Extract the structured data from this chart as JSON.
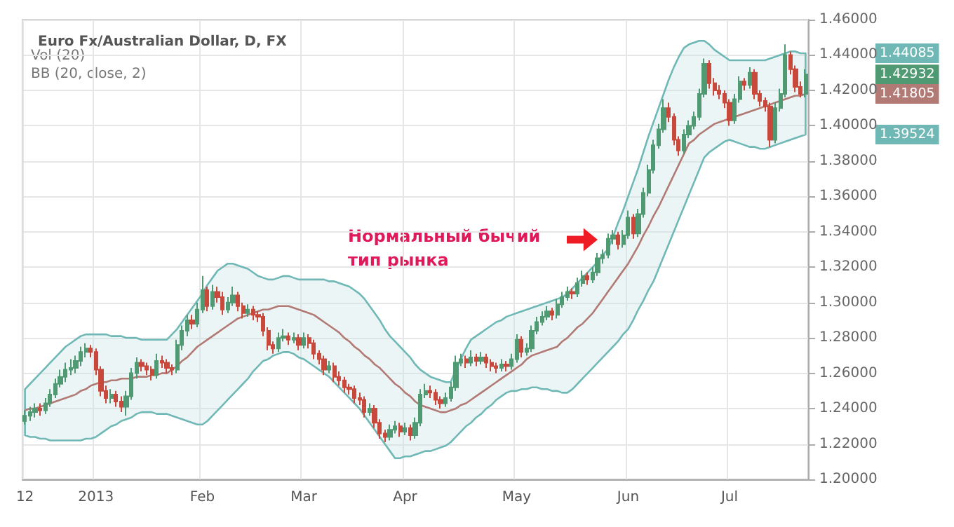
{
  "chart_data": {
    "type": "candlestick",
    "title": "Euro Fx/Australian Dollar, D, FX",
    "annotations": [
      "Vol (20)",
      "BB (20, close, 2)",
      "Нормальный бычий\nтип рынка",
      "1.44085",
      "1.42932",
      "1.41805",
      "1.39524"
    ],
    "categories": [
      "12",
      null,
      null,
      null,
      null,
      null,
      null,
      null,
      null,
      null,
      null,
      null,
      null,
      null,
      "2013",
      null,
      null,
      null,
      null,
      null,
      null,
      null,
      null,
      null,
      null,
      null,
      null,
      null,
      null,
      null,
      null,
      null,
      null,
      null,
      null,
      "Feb",
      null,
      null,
      null,
      null,
      null,
      null,
      null,
      null,
      null,
      null,
      null,
      null,
      null,
      null,
      null,
      null,
      null,
      null,
      null,
      "Mar",
      null,
      null,
      null,
      null,
      null,
      null,
      null,
      null,
      null,
      null,
      null,
      null,
      null,
      null,
      null,
      null,
      null,
      null,
      null,
      "Apr",
      null,
      null,
      null,
      null,
      null,
      null,
      null,
      null,
      null,
      null,
      null,
      null,
      null,
      null,
      null,
      null,
      null,
      null,
      null,
      null,
      null,
      "May",
      null,
      null,
      null,
      null,
      null,
      null,
      null,
      null,
      null,
      null,
      null,
      null,
      null,
      null,
      null,
      null,
      null,
      null,
      null,
      null,
      null,
      "Jun",
      null,
      null,
      null,
      null,
      null,
      null,
      null,
      null,
      null,
      null,
      null,
      null,
      null,
      null,
      null,
      null,
      null,
      null,
      null,
      "Jul",
      null,
      null,
      null,
      null,
      null,
      null,
      null,
      null,
      null,
      null,
      null,
      null,
      null,
      null,
      null
    ],
    "ohlc": [
      [
        1.233,
        1.239,
        1.231,
        1.236
      ],
      [
        1.236,
        1.241,
        1.233,
        1.238
      ],
      [
        1.238,
        1.243,
        1.235,
        1.24
      ],
      [
        1.24,
        1.243,
        1.236,
        1.239
      ],
      [
        1.239,
        1.246,
        1.237,
        1.243
      ],
      [
        1.243,
        1.251,
        1.241,
        1.248
      ],
      [
        1.248,
        1.257,
        1.246,
        1.254
      ],
      [
        1.254,
        1.262,
        1.252,
        1.258
      ],
      [
        1.258,
        1.266,
        1.255,
        1.262
      ],
      [
        1.262,
        1.268,
        1.259,
        1.263
      ],
      [
        1.263,
        1.27,
        1.26,
        1.267
      ],
      [
        1.267,
        1.275,
        1.264,
        1.272
      ],
      [
        1.272,
        1.277,
        1.269,
        1.274
      ],
      [
        1.274,
        1.276,
        1.269,
        1.272
      ],
      [
        1.272,
        1.274,
        1.259,
        1.262
      ],
      [
        1.262,
        1.264,
        1.247,
        1.25
      ],
      [
        1.25,
        1.253,
        1.243,
        1.246
      ],
      [
        1.246,
        1.251,
        1.243,
        1.248
      ],
      [
        1.248,
        1.25,
        1.241,
        1.244
      ],
      [
        1.244,
        1.247,
        1.238,
        1.241
      ],
      [
        1.241,
        1.25,
        1.236,
        1.247
      ],
      [
        1.247,
        1.263,
        1.245,
        1.26
      ],
      [
        1.26,
        1.269,
        1.257,
        1.266
      ],
      [
        1.266,
        1.268,
        1.261,
        1.264
      ],
      [
        1.264,
        1.266,
        1.259,
        1.262
      ],
      [
        1.262,
        1.264,
        1.256,
        1.259
      ],
      [
        1.259,
        1.271,
        1.257,
        1.267
      ],
      [
        1.267,
        1.27,
        1.263,
        1.266
      ],
      [
        1.266,
        1.268,
        1.26,
        1.263
      ],
      [
        1.263,
        1.265,
        1.259,
        1.262
      ],
      [
        1.262,
        1.279,
        1.26,
        1.276
      ],
      [
        1.276,
        1.287,
        1.273,
        1.284
      ],
      [
        1.284,
        1.293,
        1.281,
        1.29
      ],
      [
        1.29,
        1.293,
        1.285,
        1.288
      ],
      [
        1.288,
        1.3,
        1.286,
        1.296
      ],
      [
        1.296,
        1.315,
        1.294,
        1.307
      ],
      [
        1.307,
        1.309,
        1.295,
        1.298
      ],
      [
        1.298,
        1.31,
        1.296,
        1.306
      ],
      [
        1.306,
        1.309,
        1.3,
        1.303
      ],
      [
        1.303,
        1.306,
        1.293,
        1.296
      ],
      [
        1.296,
        1.303,
        1.294,
        1.3
      ],
      [
        1.3,
        1.309,
        1.298,
        1.304
      ],
      [
        1.304,
        1.306,
        1.295,
        1.298
      ],
      [
        1.298,
        1.3,
        1.291,
        1.294
      ],
      [
        1.294,
        1.299,
        1.292,
        1.296
      ],
      [
        1.296,
        1.298,
        1.29,
        1.293
      ],
      [
        1.293,
        1.295,
        1.289,
        1.292
      ],
      [
        1.292,
        1.294,
        1.281,
        1.284
      ],
      [
        1.284,
        1.286,
        1.273,
        1.276
      ],
      [
        1.276,
        1.278,
        1.271,
        1.274
      ],
      [
        1.274,
        1.283,
        1.272,
        1.28
      ],
      [
        1.28,
        1.285,
        1.278,
        1.281
      ],
      [
        1.281,
        1.283,
        1.276,
        1.279
      ],
      [
        1.279,
        1.283,
        1.277,
        1.28
      ],
      [
        1.28,
        1.282,
        1.273,
        1.276
      ],
      [
        1.276,
        1.283,
        1.274,
        1.28
      ],
      [
        1.28,
        1.282,
        1.274,
        1.277
      ],
      [
        1.277,
        1.279,
        1.268,
        1.271
      ],
      [
        1.271,
        1.273,
        1.265,
        1.268
      ],
      [
        1.268,
        1.27,
        1.259,
        1.262
      ],
      [
        1.262,
        1.267,
        1.26,
        1.264
      ],
      [
        1.264,
        1.266,
        1.255,
        1.258
      ],
      [
        1.258,
        1.261,
        1.253,
        1.256
      ],
      [
        1.256,
        1.258,
        1.249,
        1.252
      ],
      [
        1.252,
        1.254,
        1.248,
        1.251
      ],
      [
        1.251,
        1.253,
        1.243,
        1.246
      ],
      [
        1.246,
        1.249,
        1.242,
        1.245
      ],
      [
        1.245,
        1.247,
        1.235,
        1.238
      ],
      [
        1.238,
        1.243,
        1.236,
        1.24
      ],
      [
        1.24,
        1.242,
        1.229,
        1.232
      ],
      [
        1.232,
        1.234,
        1.223,
        1.226
      ],
      [
        1.226,
        1.228,
        1.221,
        1.224
      ],
      [
        1.224,
        1.231,
        1.222,
        1.228
      ],
      [
        1.228,
        1.233,
        1.226,
        1.23
      ],
      [
        1.23,
        1.232,
        1.224,
        1.227
      ],
      [
        1.227,
        1.232,
        1.225,
        1.229
      ],
      [
        1.229,
        1.231,
        1.222,
        1.225
      ],
      [
        1.225,
        1.235,
        1.223,
        1.232
      ],
      [
        1.232,
        1.251,
        1.23,
        1.248
      ],
      [
        1.248,
        1.254,
        1.246,
        1.25
      ],
      [
        1.25,
        1.253,
        1.246,
        1.249
      ],
      [
        1.249,
        1.251,
        1.242,
        1.245
      ],
      [
        1.245,
        1.247,
        1.24,
        1.243
      ],
      [
        1.243,
        1.249,
        1.241,
        1.246
      ],
      [
        1.246,
        1.255,
        1.244,
        1.252
      ],
      [
        1.252,
        1.27,
        1.25,
        1.266
      ],
      [
        1.266,
        1.271,
        1.264,
        1.268
      ],
      [
        1.268,
        1.27,
        1.263,
        1.266
      ],
      [
        1.266,
        1.273,
        1.264,
        1.269
      ],
      [
        1.269,
        1.271,
        1.264,
        1.267
      ],
      [
        1.267,
        1.272,
        1.265,
        1.269
      ],
      [
        1.269,
        1.271,
        1.263,
        1.266
      ],
      [
        1.266,
        1.268,
        1.261,
        1.264
      ],
      [
        1.264,
        1.266,
        1.26,
        1.263
      ],
      [
        1.263,
        1.268,
        1.261,
        1.265
      ],
      [
        1.265,
        1.267,
        1.261,
        1.264
      ],
      [
        1.264,
        1.271,
        1.262,
        1.268
      ],
      [
        1.268,
        1.282,
        1.266,
        1.279
      ],
      [
        1.279,
        1.281,
        1.269,
        1.272
      ],
      [
        1.272,
        1.277,
        1.27,
        1.274
      ],
      [
        1.274,
        1.287,
        1.272,
        1.284
      ],
      [
        1.284,
        1.292,
        1.282,
        1.289
      ],
      [
        1.289,
        1.295,
        1.287,
        1.292
      ],
      [
        1.292,
        1.298,
        1.29,
        1.295
      ],
      [
        1.295,
        1.297,
        1.29,
        1.293
      ],
      [
        1.293,
        1.302,
        1.291,
        1.299
      ],
      [
        1.299,
        1.306,
        1.297,
        1.303
      ],
      [
        1.303,
        1.309,
        1.301,
        1.306
      ],
      [
        1.306,
        1.308,
        1.302,
        1.305
      ],
      [
        1.305,
        1.314,
        1.303,
        1.311
      ],
      [
        1.311,
        1.318,
        1.309,
        1.315
      ],
      [
        1.315,
        1.317,
        1.31,
        1.313
      ],
      [
        1.313,
        1.32,
        1.311,
        1.317
      ],
      [
        1.317,
        1.328,
        1.315,
        1.325
      ],
      [
        1.325,
        1.33,
        1.322,
        1.327
      ],
      [
        1.327,
        1.339,
        1.325,
        1.336
      ],
      [
        1.336,
        1.341,
        1.333,
        1.338
      ],
      [
        1.338,
        1.34,
        1.33,
        1.333
      ],
      [
        1.333,
        1.341,
        1.331,
        1.338
      ],
      [
        1.338,
        1.352,
        1.336,
        1.348
      ],
      [
        1.348,
        1.35,
        1.336,
        1.339
      ],
      [
        1.339,
        1.353,
        1.337,
        1.35
      ],
      [
        1.35,
        1.365,
        1.348,
        1.362
      ],
      [
        1.362,
        1.378,
        1.36,
        1.375
      ],
      [
        1.375,
        1.392,
        1.373,
        1.389
      ],
      [
        1.389,
        1.401,
        1.387,
        1.398
      ],
      [
        1.398,
        1.415,
        1.396,
        1.41
      ],
      [
        1.41,
        1.413,
        1.402,
        1.405
      ],
      [
        1.405,
        1.407,
        1.389,
        1.392
      ],
      [
        1.392,
        1.394,
        1.383,
        1.386
      ],
      [
        1.386,
        1.398,
        1.384,
        1.395
      ],
      [
        1.395,
        1.403,
        1.393,
        1.4
      ],
      [
        1.4,
        1.408,
        1.398,
        1.405
      ],
      [
        1.405,
        1.421,
        1.403,
        1.418
      ],
      [
        1.418,
        1.438,
        1.416,
        1.435
      ],
      [
        1.435,
        1.437,
        1.421,
        1.424
      ],
      [
        1.424,
        1.427,
        1.417,
        1.42
      ],
      [
        1.42,
        1.423,
        1.415,
        1.418
      ],
      [
        1.418,
        1.42,
        1.41,
        1.413
      ],
      [
        1.413,
        1.415,
        1.4,
        1.403
      ],
      [
        1.403,
        1.418,
        1.401,
        1.415
      ],
      [
        1.415,
        1.428,
        1.413,
        1.425
      ],
      [
        1.425,
        1.427,
        1.42,
        1.423
      ],
      [
        1.423,
        1.433,
        1.421,
        1.43
      ],
      [
        1.43,
        1.432,
        1.415,
        1.418
      ],
      [
        1.418,
        1.42,
        1.411,
        1.414
      ],
      [
        1.414,
        1.416,
        1.408,
        1.411
      ],
      [
        1.411,
        1.413,
        1.388,
        1.392
      ],
      [
        1.392,
        1.413,
        1.39,
        1.41
      ],
      [
        1.41,
        1.421,
        1.408,
        1.418
      ],
      [
        1.418,
        1.446,
        1.416,
        1.44
      ],
      [
        1.44,
        1.442,
        1.429,
        1.432
      ],
      [
        1.432,
        1.434,
        1.419,
        1.422
      ],
      [
        1.422,
        1.425,
        1.416,
        1.418
      ],
      [
        1.418,
        1.432,
        1.416,
        1.429
      ]
    ],
    "colors": [
      "#4f9a72",
      "#4f9a72",
      "#4f9a72",
      "#c9483c",
      "#4f9a72",
      "#4f9a72",
      "#4f9a72",
      "#4f9a72",
      "#4f9a72",
      "#4f9a72",
      "#4f9a72",
      "#4f9a72",
      "#4f9a72",
      "#c9483c",
      "#c9483c",
      "#c9483c",
      "#c9483c",
      "#4f9a72",
      "#c9483c",
      "#c9483c",
      "#4f9a72",
      "#4f9a72",
      "#4f9a72",
      "#c9483c",
      "#c9483c",
      "#c9483c",
      "#4f9a72",
      "#c9483c",
      "#c9483c",
      "#c9483c",
      "#4f9a72",
      "#4f9a72",
      "#4f9a72",
      "#c9483c",
      "#4f9a72",
      "#4f9a72",
      "#c9483c",
      "#4f9a72",
      "#c9483c",
      "#c9483c",
      "#4f9a72",
      "#4f9a72",
      "#c9483c",
      "#c9483c",
      "#4f9a72",
      "#c9483c",
      "#c9483c",
      "#c9483c",
      "#c9483c",
      "#c9483c",
      "#4f9a72",
      "#4f9a72",
      "#c9483c",
      "#4f9a72",
      "#c9483c",
      "#4f9a72",
      "#c9483c",
      "#c9483c",
      "#c9483c",
      "#c9483c",
      "#4f9a72",
      "#c9483c",
      "#c9483c",
      "#c9483c",
      "#c9483c",
      "#c9483c",
      "#c9483c",
      "#c9483c",
      "#4f9a72",
      "#c9483c",
      "#c9483c",
      "#c9483c",
      "#4f9a72",
      "#4f9a72",
      "#c9483c",
      "#4f9a72",
      "#c9483c",
      "#4f9a72",
      "#4f9a72",
      "#4f9a72",
      "#c9483c",
      "#c9483c",
      "#c9483c",
      "#4f9a72",
      "#4f9a72",
      "#4f9a72",
      "#4f9a72",
      "#c9483c",
      "#4f9a72",
      "#c9483c",
      "#4f9a72",
      "#c9483c",
      "#c9483c",
      "#c9483c",
      "#4f9a72",
      "#c9483c",
      "#4f9a72",
      "#4f9a72",
      "#c9483c",
      "#4f9a72",
      "#4f9a72",
      "#4f9a72",
      "#4f9a72",
      "#4f9a72",
      "#c9483c",
      "#4f9a72",
      "#4f9a72",
      "#4f9a72",
      "#c9483c",
      "#4f9a72",
      "#4f9a72",
      "#c9483c",
      "#4f9a72",
      "#4f9a72",
      "#4f9a72",
      "#4f9a72",
      "#4f9a72",
      "#c9483c",
      "#4f9a72",
      "#4f9a72",
      "#c9483c",
      "#4f9a72",
      "#4f9a72",
      "#4f9a72",
      "#4f9a72",
      "#4f9a72",
      "#4f9a72",
      "#c9483c",
      "#c9483c",
      "#c9483c",
      "#4f9a72",
      "#4f9a72",
      "#4f9a72",
      "#4f9a72",
      "#4f9a72",
      "#c9483c",
      "#c9483c",
      "#c9483c",
      "#c9483c",
      "#c9483c",
      "#4f9a72",
      "#4f9a72",
      "#c9483c",
      "#4f9a72",
      "#c9483c",
      "#c9483c",
      "#c9483c",
      "#c9483c",
      "#4f9a72",
      "#4f9a72",
      "#4f9a72",
      "#c9483c",
      "#c9483c",
      "#c9483c",
      "#4f9a72"
    ],
    "series": [
      {
        "type": "line",
        "color": "#b27a75",
        "upper": [
          1.251,
          1.254,
          1.257,
          1.26,
          1.263,
          1.266,
          1.269,
          1.272,
          1.275,
          1.277,
          1.279,
          1.281,
          1.282,
          1.282,
          1.282,
          1.282,
          1.282,
          1.281,
          1.281,
          1.281,
          1.28,
          1.28,
          1.28,
          1.279,
          1.279,
          1.279,
          1.279,
          1.279,
          1.279,
          1.282,
          1.285,
          1.289,
          1.293,
          1.297,
          1.301,
          1.305,
          1.31,
          1.314,
          1.318,
          1.32,
          1.322,
          1.322,
          1.321,
          1.32,
          1.319,
          1.317,
          1.315,
          1.314,
          1.313,
          1.313,
          1.314,
          1.315,
          1.315,
          1.314,
          1.313,
          1.313,
          1.313,
          1.313,
          1.313,
          1.313,
          1.312,
          1.312,
          1.311,
          1.31,
          1.309,
          1.307,
          1.305,
          1.302,
          1.298,
          1.294,
          1.29,
          1.285,
          1.281,
          1.278,
          1.275,
          1.272,
          1.269,
          1.265,
          1.262,
          1.26,
          1.258,
          1.257,
          1.256,
          1.255,
          1.255,
          1.262,
          1.268,
          1.274,
          1.279,
          1.281,
          1.283,
          1.285,
          1.287,
          1.289,
          1.29,
          1.292,
          1.293,
          1.294,
          1.295,
          1.296,
          1.297,
          1.298,
          1.299,
          1.3,
          1.301,
          1.302,
          1.303,
          1.305,
          1.308,
          1.311,
          1.314,
          1.317,
          1.32,
          1.323,
          1.327,
          1.33,
          1.337,
          1.345,
          1.352,
          1.36,
          1.368,
          1.376,
          1.385,
          1.394,
          1.402,
          1.41,
          1.418,
          1.426,
          1.433,
          1.439,
          1.444,
          1.446,
          1.447,
          1.448,
          1.448,
          1.446,
          1.443,
          1.441,
          1.439,
          1.437,
          1.437,
          1.437,
          1.437,
          1.437,
          1.437,
          1.437,
          1.437,
          1.438,
          1.439,
          1.44,
          1.441,
          1.442,
          1.442,
          1.441,
          1.441
        ],
        "values": [
          1.239,
          1.24,
          1.24,
          1.241,
          1.242,
          1.243,
          1.244,
          1.245,
          1.246,
          1.247,
          1.248,
          1.25,
          1.251,
          1.253,
          1.254,
          1.255,
          1.255,
          1.256,
          1.256,
          1.257,
          1.257,
          1.257,
          1.258,
          1.258,
          1.258,
          1.259,
          1.259,
          1.26,
          1.26,
          1.262,
          1.264,
          1.267,
          1.269,
          1.272,
          1.275,
          1.277,
          1.279,
          1.281,
          1.283,
          1.285,
          1.287,
          1.289,
          1.291,
          1.292,
          1.293,
          1.294,
          1.295,
          1.296,
          1.296,
          1.297,
          1.298,
          1.298,
          1.298,
          1.297,
          1.296,
          1.295,
          1.294,
          1.293,
          1.291,
          1.289,
          1.287,
          1.285,
          1.283,
          1.28,
          1.278,
          1.275,
          1.273,
          1.27,
          1.268,
          1.265,
          1.263,
          1.26,
          1.257,
          1.254,
          1.252,
          1.249,
          1.247,
          1.244,
          1.242,
          1.241,
          1.24,
          1.239,
          1.238,
          1.238,
          1.239,
          1.24,
          1.242,
          1.243,
          1.245,
          1.247,
          1.249,
          1.251,
          1.253,
          1.255,
          1.257,
          1.259,
          1.261,
          1.263,
          1.265,
          1.268,
          1.27,
          1.271,
          1.272,
          1.273,
          1.274,
          1.275,
          1.278,
          1.28,
          1.283,
          1.286,
          1.288,
          1.291,
          1.294,
          1.298,
          1.302,
          1.306,
          1.31,
          1.314,
          1.318,
          1.322,
          1.327,
          1.332,
          1.338,
          1.343,
          1.349,
          1.354,
          1.36,
          1.366,
          1.372,
          1.378,
          1.384,
          1.39,
          1.392,
          1.395,
          1.397,
          1.399,
          1.401,
          1.402,
          1.403,
          1.404,
          1.405,
          1.406,
          1.407,
          1.408,
          1.409,
          1.41,
          1.411,
          1.412,
          1.413,
          1.414,
          1.415,
          1.416,
          1.417,
          1.417,
          1.418
        ],
        "lower": [
          1.225,
          1.224,
          1.224,
          1.223,
          1.223,
          1.222,
          1.222,
          1.222,
          1.222,
          1.222,
          1.222,
          1.222,
          1.223,
          1.223,
          1.224,
          1.226,
          1.228,
          1.23,
          1.231,
          1.233,
          1.234,
          1.235,
          1.237,
          1.238,
          1.238,
          1.238,
          1.237,
          1.237,
          1.237,
          1.236,
          1.235,
          1.234,
          1.233,
          1.232,
          1.231,
          1.231,
          1.233,
          1.236,
          1.239,
          1.242,
          1.245,
          1.248,
          1.251,
          1.254,
          1.257,
          1.261,
          1.264,
          1.267,
          1.268,
          1.27,
          1.271,
          1.272,
          1.272,
          1.271,
          1.269,
          1.268,
          1.266,
          1.264,
          1.262,
          1.26,
          1.258,
          1.255,
          1.252,
          1.249,
          1.246,
          1.243,
          1.24,
          1.236,
          1.232,
          1.228,
          1.224,
          1.22,
          1.216,
          1.212,
          1.212,
          1.213,
          1.213,
          1.214,
          1.215,
          1.216,
          1.216,
          1.217,
          1.218,
          1.219,
          1.221,
          1.224,
          1.227,
          1.23,
          1.232,
          1.235,
          1.237,
          1.24,
          1.242,
          1.245,
          1.247,
          1.249,
          1.25,
          1.25,
          1.251,
          1.251,
          1.252,
          1.252,
          1.251,
          1.251,
          1.25,
          1.25,
          1.249,
          1.249,
          1.251,
          1.254,
          1.257,
          1.26,
          1.263,
          1.266,
          1.269,
          1.272,
          1.275,
          1.278,
          1.282,
          1.285,
          1.29,
          1.296,
          1.301,
          1.307,
          1.312,
          1.319,
          1.326,
          1.333,
          1.34,
          1.347,
          1.354,
          1.361,
          1.368,
          1.375,
          1.382,
          1.385,
          1.387,
          1.389,
          1.391,
          1.392,
          1.391,
          1.39,
          1.389,
          1.388,
          1.388,
          1.387,
          1.387,
          1.388,
          1.389,
          1.39,
          1.391,
          1.392,
          1.393,
          1.394,
          1.395
        ]
      }
    ],
    "ylim": [
      1.2,
      1.46
    ],
    "yticks": [
      {
        "value": 1.2,
        "label": "1.20000"
      },
      {
        "value": 1.22,
        "label": "1.22000"
      },
      {
        "value": 1.24,
        "label": "1.24000"
      },
      {
        "value": 1.26,
        "label": "1.26000"
      },
      {
        "value": 1.28,
        "label": "1.28000"
      },
      {
        "value": 1.3,
        "label": "1.30000"
      },
      {
        "value": 1.32,
        "label": "1.32000"
      },
      {
        "value": 1.34,
        "label": "1.34000"
      },
      {
        "value": 1.36,
        "label": "1.36000"
      },
      {
        "value": 1.38,
        "label": "1.38000"
      },
      {
        "value": 1.4,
        "label": "1.40000"
      },
      {
        "value": 1.42,
        "label": "1.42000"
      },
      {
        "value": 1.44,
        "label": "1.44000"
      },
      {
        "value": 1.46,
        "label": "1.46000"
      }
    ],
    "grid": true
  }
}
